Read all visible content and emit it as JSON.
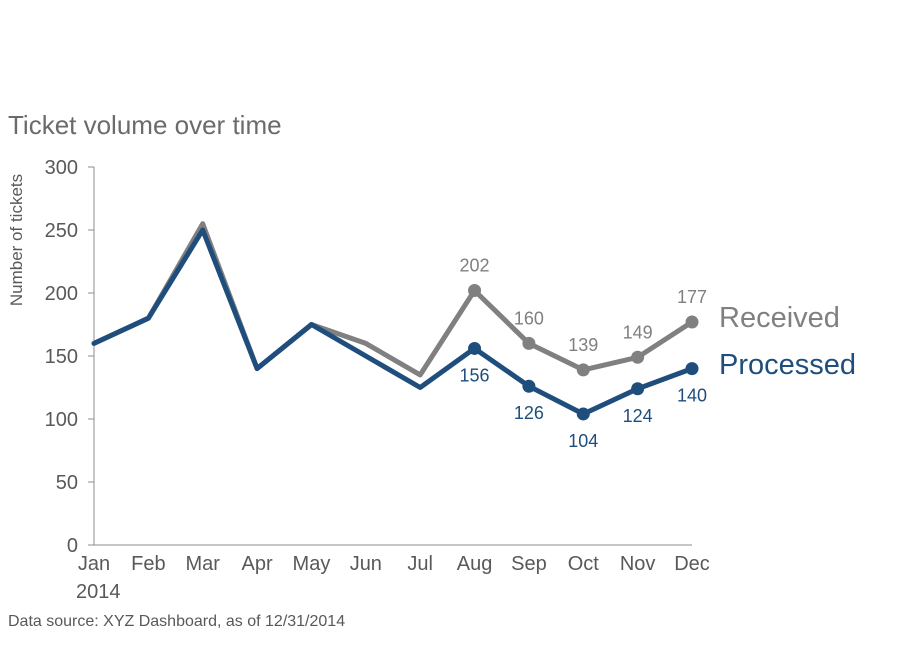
{
  "chart_data": {
    "type": "line",
    "title": "Ticket volume over time",
    "xlabel": "",
    "ylabel": "Number of tickets",
    "categories": [
      "Jan",
      "Feb",
      "Mar",
      "Apr",
      "May",
      "Jun",
      "Jul",
      "Aug",
      "Sep",
      "Oct",
      "Nov",
      "Dec"
    ],
    "year_label": "2014",
    "ylim": [
      0,
      300
    ],
    "yticks": [
      0,
      50,
      100,
      150,
      200,
      250,
      300
    ],
    "grid": false,
    "series": [
      {
        "name": "Received",
        "color": "#808080",
        "values": [
          160,
          180,
          255,
          140,
          175,
          160,
          135,
          202,
          160,
          139,
          149,
          177
        ],
        "labeled_from_index": 7,
        "label_position": "above"
      },
      {
        "name": "Processed",
        "color": "#1f4e7d",
        "values": [
          160,
          180,
          250,
          140,
          175,
          150,
          125,
          156,
          126,
          104,
          124,
          140
        ],
        "labeled_from_index": 7,
        "label_position": "below"
      }
    ],
    "source_note": "Data source: XYZ Dashboard, as of 12/31/2014"
  }
}
